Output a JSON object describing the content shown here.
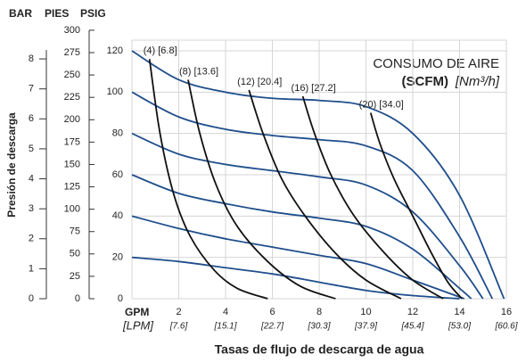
{
  "chart_data": {
    "type": "line",
    "title_axes": [
      "BAR",
      "PIES",
      "PSIG"
    ],
    "ylabel": "Presión de descarga",
    "xlabel": "Tasas de flujo de descarga de agua",
    "xunit": "GPM",
    "x2unit": "[LPM]",
    "annotation": {
      "title": "CONSUMO DE AIRE",
      "unit_bold": "(SCFM)",
      "unit_italic": "[Nm³/h]"
    },
    "xlim": [
      0,
      16
    ],
    "xticks": [
      2,
      4,
      6,
      8,
      10,
      12,
      14,
      16
    ],
    "x2ticks": [
      {
        "value": 2,
        "label": "[7.6]"
      },
      {
        "value": 4,
        "label": "[15.1]"
      },
      {
        "value": 6,
        "label": "[22.7]"
      },
      {
        "value": 8,
        "label": "[30.3]"
      },
      {
        "value": 10,
        "label": "[37.9]"
      },
      {
        "value": 12,
        "label": "[45.4]"
      },
      {
        "value": 14,
        "label": "[53.0]"
      },
      {
        "value": 16,
        "label": "[60.6]"
      }
    ],
    "ylim": [
      0,
      120
    ],
    "yticks": [
      0,
      20,
      40,
      60,
      80,
      100,
      120
    ],
    "barlim": [
      0,
      8.27
    ],
    "barticks": [
      0,
      1,
      2,
      3,
      4,
      5,
      6,
      7,
      8
    ],
    "pieslim": [
      0,
      277
    ],
    "piesticks": [
      0,
      25,
      50,
      75,
      100,
      125,
      150,
      175,
      200,
      225,
      250,
      275,
      300
    ],
    "grid": true,
    "series": [
      {
        "color": "#1f4e8c",
        "x": [
          0,
          2,
          4,
          6,
          8,
          10,
          12,
          14,
          15.9
        ],
        "values": [
          120,
          106,
          100,
          97,
          96,
          93,
          80,
          50,
          0
        ]
      },
      {
        "color": "#1f4e8c",
        "x": [
          0,
          2,
          4,
          6,
          8,
          10,
          12,
          14,
          15.4
        ],
        "values": [
          100,
          88,
          82,
          79,
          77,
          74,
          62,
          30,
          0
        ]
      },
      {
        "color": "#1f4e8c",
        "x": [
          0,
          2,
          4,
          6,
          8,
          10,
          12,
          14,
          15
        ],
        "values": [
          80,
          70,
          65,
          62,
          59,
          55,
          42,
          16,
          0
        ]
      },
      {
        "color": "#1f4e8c",
        "x": [
          0,
          2,
          4,
          6,
          8,
          10,
          12,
          14,
          14.5
        ],
        "values": [
          60,
          51,
          46,
          42,
          39,
          35,
          24,
          5,
          0
        ]
      },
      {
        "color": "#1f4e8c",
        "x": [
          0,
          2,
          4,
          6,
          8,
          10,
          12,
          14.2
        ],
        "values": [
          40,
          34,
          29,
          25,
          21,
          17,
          9,
          0
        ]
      },
      {
        "color": "#1f4e8c",
        "x": [
          0,
          2,
          4,
          6,
          8,
          10,
          12,
          14
        ],
        "values": [
          20,
          18,
          15,
          12,
          8,
          4,
          1.5,
          0
        ]
      },
      {
        "name": "(4) [6.8]",
        "color": "#111111",
        "x": [
          0.75,
          1.2,
          1.8,
          2.5,
          3.5,
          4.5,
          5.8
        ],
        "values": [
          116,
          80,
          50,
          30,
          14,
          5,
          0
        ]
      },
      {
        "name": "(8) [13.6]",
        "color": "#111111",
        "x": [
          2.4,
          2.9,
          3.6,
          4.5,
          5.8,
          7.2,
          8.7
        ],
        "values": [
          106,
          80,
          55,
          35,
          18,
          6,
          0
        ]
      },
      {
        "name": "(12) [20.4]",
        "color": "#111111",
        "x": [
          5.0,
          5.6,
          6.4,
          7.4,
          8.7,
          10,
          11.5
        ],
        "values": [
          101,
          80,
          58,
          40,
          22,
          9,
          0
        ]
      },
      {
        "name": "(16) [27.2]",
        "color": "#111111",
        "x": [
          7.3,
          7.8,
          8.5,
          9.5,
          10.8,
          12,
          13.3
        ],
        "values": [
          98,
          80,
          60,
          40,
          22,
          9,
          0
        ]
      },
      {
        "name": "(20) [34.0]",
        "color": "#111111",
        "x": [
          10.2,
          10.6,
          11.2,
          12,
          12.8,
          13.5,
          14.1
        ],
        "values": [
          90,
          75,
          58,
          40,
          22,
          8,
          0
        ]
      }
    ]
  }
}
